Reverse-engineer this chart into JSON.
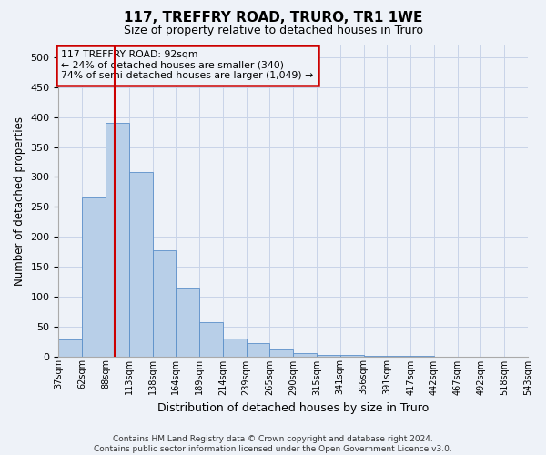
{
  "title": "117, TREFFRY ROAD, TRURO, TR1 1WE",
  "subtitle": "Size of property relative to detached houses in Truro",
  "xlabel": "Distribution of detached houses by size in Truro",
  "ylabel": "Number of detached properties",
  "footer_line1": "Contains HM Land Registry data © Crown copyright and database right 2024.",
  "footer_line2": "Contains public sector information licensed under the Open Government Licence v3.0.",
  "bar_values": [
    28,
    265,
    390,
    308,
    178,
    113,
    57,
    30,
    22,
    12,
    6,
    3,
    2,
    1,
    1,
    1,
    0,
    0,
    0,
    0
  ],
  "bin_labels": [
    "37sqm",
    "62sqm",
    "88sqm",
    "113sqm",
    "138sqm",
    "164sqm",
    "189sqm",
    "214sqm",
    "239sqm",
    "265sqm",
    "290sqm",
    "315sqm",
    "341sqm",
    "366sqm",
    "391sqm",
    "417sqm",
    "442sqm",
    "467sqm",
    "492sqm",
    "518sqm",
    "543sqm"
  ],
  "bar_color": "#b8cfe8",
  "bar_edge_color": "#5b8fc9",
  "property_line_bin_index": 1.88,
  "annotation_box_text": [
    "117 TREFFRY ROAD: 92sqm",
    "← 24% of detached houses are smaller (340)",
    "74% of semi-detached houses are larger (1,049) →"
  ],
  "annotation_box_color": "#cc0000",
  "grid_color": "#c8d4e8",
  "background_color": "#eef2f8",
  "ylim": [
    0,
    520
  ],
  "yticks": [
    0,
    50,
    100,
    150,
    200,
    250,
    300,
    350,
    400,
    450,
    500
  ]
}
